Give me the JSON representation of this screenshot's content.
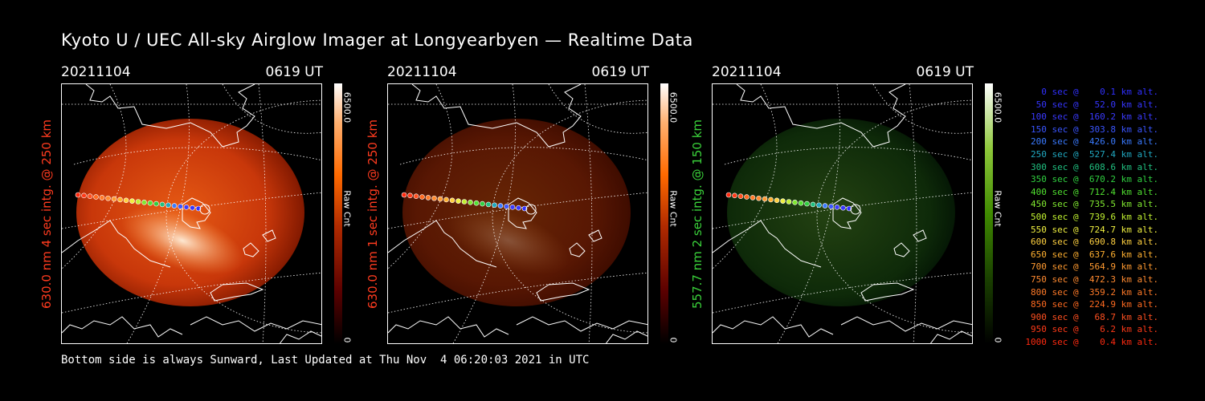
{
  "header": {
    "title": "Kyoto U / UEC All-sky Airglow Imager at Longyearbyen — Realtime Data"
  },
  "panels": [
    {
      "date": "20211104",
      "time": "0619 UT",
      "ylabel": "630.0 nm 4 sec intg. @ 250 km",
      "label_color": "#ff3b1f",
      "colorbar_max": "6500.0",
      "colorbar_min": "0",
      "colorbar_unit": "Raw Cnt",
      "colormap": "red",
      "brightness": 1.0
    },
    {
      "date": "20211104",
      "time": "0619 UT",
      "ylabel": "630.0 nm 1 sec intg. @ 250 km",
      "label_color": "#ff3b1f",
      "colorbar_max": "6500.0",
      "colorbar_min": "0",
      "colorbar_unit": "Raw Cnt",
      "colormap": "red",
      "brightness": 0.25
    },
    {
      "date": "20211104",
      "time": "0619 UT",
      "ylabel": "557.7 nm 2 sec intg. @ 150 km",
      "label_color": "#3ad13a",
      "colorbar_max": "6500.0",
      "colorbar_min": "0",
      "colorbar_unit": "Raw Cnt",
      "colormap": "green",
      "brightness": 0.3
    }
  ],
  "legend": [
    {
      "text": "   0 sec @    0.1 km alt.",
      "color": "#3030ff"
    },
    {
      "text": "  50 sec @   52.0 km alt.",
      "color": "#3535ff"
    },
    {
      "text": " 100 sec @  160.2 km alt.",
      "color": "#3a3aff"
    },
    {
      "text": " 150 sec @  303.8 km alt.",
      "color": "#3a55ff"
    },
    {
      "text": " 200 sec @  426.0 km alt.",
      "color": "#3a7aff"
    },
    {
      "text": " 250 sec @  527.4 km alt.",
      "color": "#20a8c0"
    },
    {
      "text": " 300 sec @  608.6 km alt.",
      "color": "#20c080"
    },
    {
      "text": " 350 sec @  670.2 km alt.",
      "color": "#30d040"
    },
    {
      "text": " 400 sec @  712.4 km alt.",
      "color": "#50e030"
    },
    {
      "text": " 450 sec @  735.5 km alt.",
      "color": "#80e830"
    },
    {
      "text": " 500 sec @  739.6 km alt.",
      "color": "#c0f030"
    },
    {
      "text": " 550 sec @  724.7 km alt.",
      "color": "#f0f040"
    },
    {
      "text": " 600 sec @  690.8 km alt.",
      "color": "#ffd040"
    },
    {
      "text": " 650 sec @  637.6 km alt.",
      "color": "#ffb030"
    },
    {
      "text": " 700 sec @  564.9 km alt.",
      "color": "#ff9a30"
    },
    {
      "text": " 750 sec @  472.3 km alt.",
      "color": "#ff8a30"
    },
    {
      "text": " 800 sec @  359.2 km alt.",
      "color": "#ff7a28"
    },
    {
      "text": " 850 sec @  224.9 km alt.",
      "color": "#ff6a20"
    },
    {
      "text": " 900 sec @   68.7 km alt.",
      "color": "#ff5020"
    },
    {
      "text": " 950 sec @    6.2 km alt.",
      "color": "#ff3a18"
    },
    {
      "text": "1000 sec @    0.4 km alt.",
      "color": "#ff2a10"
    }
  ],
  "footer": {
    "text": "Bottom side is always Sunward, Last Updated at Thu Nov  4 06:20:03 2021 in UTC"
  }
}
